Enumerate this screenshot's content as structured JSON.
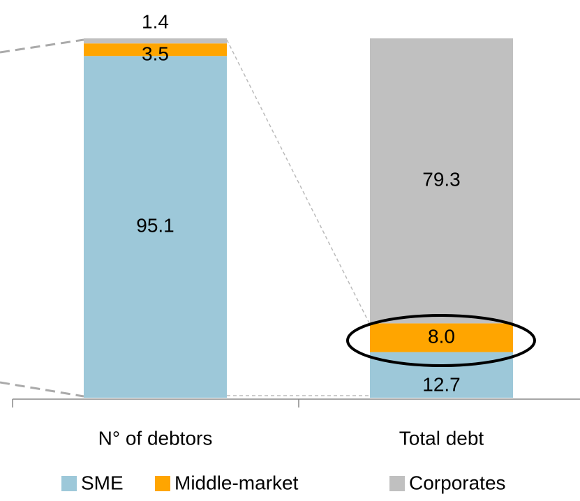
{
  "chart_data": {
    "type": "stacked_bar",
    "categories": [
      "N° of debtors",
      "Total debt"
    ],
    "series": [
      {
        "name": "SME",
        "color": "#9dc8d9",
        "values": [
          95.1,
          12.7
        ]
      },
      {
        "name": "Middle-market",
        "color": "#ffa500",
        "values": [
          3.5,
          8.0
        ],
        "value_labels": [
          "3.5",
          "8.0"
        ]
      },
      {
        "name": "Corporates",
        "color": "#c0c0c0",
        "values": [
          1.4,
          79.3
        ]
      }
    ],
    "ylim": [
      0,
      100
    ],
    "legend": "bottom"
  }
}
